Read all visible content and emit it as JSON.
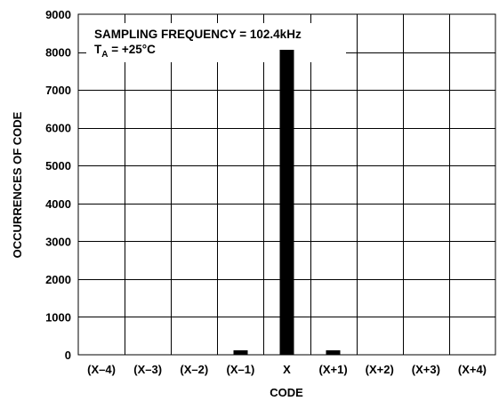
{
  "chart_data": {
    "type": "bar",
    "title": "",
    "annotations": [
      "SAMPLING FREQUENCY = 102.4kHz",
      "T",
      "A",
      " = +25°C"
    ],
    "xlabel": "CODE",
    "ylabel": "OCCURRENCES OF CODE",
    "categories": [
      "(X–4)",
      "(X–3)",
      "(X–2)",
      "(X–1)",
      "X",
      "(X+1)",
      "(X+2)",
      "(X+3)",
      "(X+4)"
    ],
    "values": [
      0,
      0,
      0,
      120,
      8060,
      120,
      0,
      0,
      0
    ],
    "ylim": [
      0,
      9000
    ],
    "yticks": [
      "0",
      "1000",
      "2000",
      "3000",
      "4000",
      "5000",
      "6000",
      "7000",
      "8000",
      "9000"
    ],
    "ytick_values": [
      0,
      1000,
      2000,
      3000,
      4000,
      5000,
      6000,
      7000,
      8000,
      9000
    ],
    "grid": true,
    "bar_color": "#000000"
  }
}
